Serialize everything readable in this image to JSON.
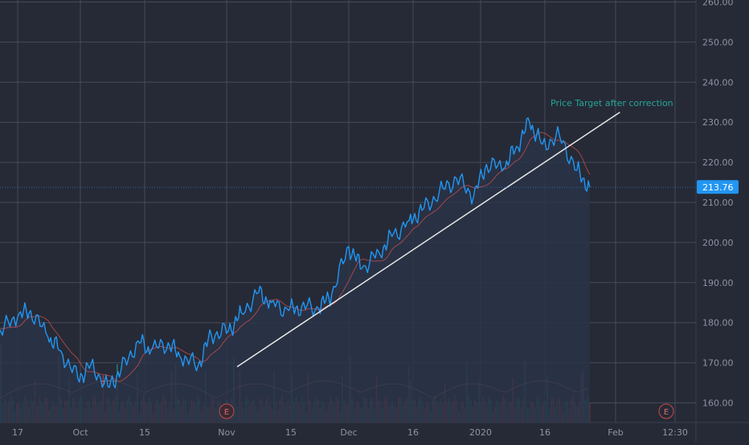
{
  "colors": {
    "background": "#262a36",
    "grid": "#454b5b",
    "price_line": "#2196f3",
    "ma_line": "#d9534f",
    "trendline": "#e8e8e8",
    "annotation": "#26a69a",
    "volume_up": "#26a69a",
    "volume_down": "#ef5350",
    "price_label_bg": "#2196f3"
  },
  "icons": {
    "earnings_marker": "E"
  },
  "chart_data": {
    "type": "line",
    "y_axis": {
      "ticks": [
        "260.00",
        "250.00",
        "240.00",
        "230.00",
        "220.00",
        "210.00",
        "200.00",
        "190.00",
        "180.00",
        "170.00",
        "160.00"
      ],
      "range": [
        155.5,
        261
      ]
    },
    "x_axis": {
      "ticks": [
        "17",
        "Oct",
        "15",
        "Nov",
        "15",
        "Dec",
        "16",
        "2020",
        "16",
        "Feb",
        "12:30"
      ]
    },
    "last_price": 213.76,
    "last_price_label": "213.76",
    "annotation": "Price Target after correction",
    "trendline": {
      "from": {
        "date": "2019-11-07",
        "value": 169.0
      },
      "to": {
        "date": "2020-02-04",
        "value": 232.5
      }
    },
    "earnings_markers": [
      "E",
      "E"
    ],
    "price_series": {
      "x": [
        "2019-09-10",
        "2019-09-13",
        "2019-09-17",
        "2019-09-20",
        "2019-09-24",
        "2019-09-27",
        "2019-10-01",
        "2019-10-04",
        "2019-10-08",
        "2019-10-11",
        "2019-10-15",
        "2019-10-18",
        "2019-10-22",
        "2019-10-25",
        "2019-10-29",
        "2019-11-01",
        "2019-11-05",
        "2019-11-08",
        "2019-11-12",
        "2019-11-15",
        "2019-11-19",
        "2019-11-22",
        "2019-11-26",
        "2019-11-29",
        "2019-12-03",
        "2019-12-06",
        "2019-12-10",
        "2019-12-13",
        "2019-12-17",
        "2019-12-20",
        "2019-12-24",
        "2019-12-28",
        "2020-01-01",
        "2020-01-04",
        "2020-01-08",
        "2020-01-11",
        "2020-01-14",
        "2020-01-17",
        "2020-01-21",
        "2020-01-25",
        "2020-01-28"
      ],
      "y": [
        179.5,
        178.0,
        181.5,
        183.0,
        176.5,
        173.0,
        166.0,
        169.5,
        164.0,
        168.0,
        175.5,
        173.0,
        175.0,
        171.0,
        169.5,
        177.0,
        178.0,
        182.5,
        187.5,
        185.0,
        183.0,
        184.0,
        183.5,
        187.0,
        199.0,
        193.5,
        197.5,
        201.5,
        205.5,
        208.0,
        212.5,
        216.0,
        211.5,
        219.5,
        218.5,
        224.0,
        230.0,
        224.5,
        226.5,
        218.0,
        213.76
      ]
    },
    "volume_note": "Volume bars and volume moving average along the bottom"
  }
}
